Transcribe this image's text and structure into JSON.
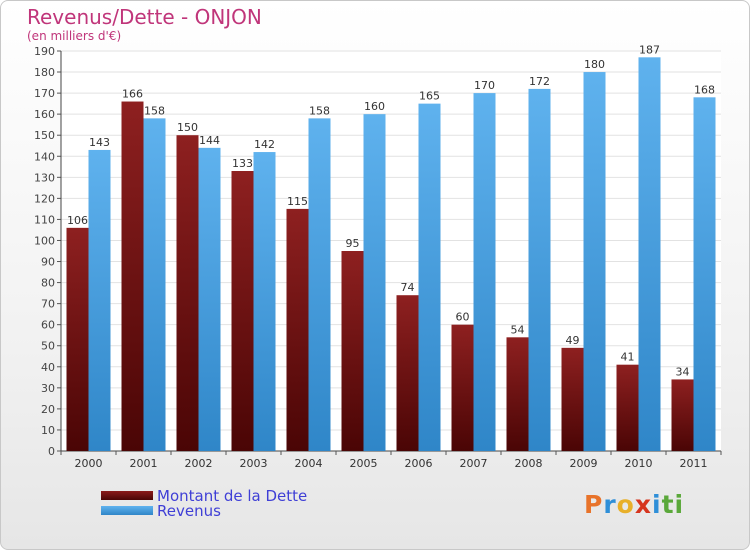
{
  "header": {
    "title": "Revenus/Dette - ONJON",
    "subtitle": "(en milliers d'€)"
  },
  "logo": {
    "text": "Proxiti",
    "letters": [
      "P",
      "r",
      "o",
      "x",
      "i",
      "t",
      "i"
    ],
    "colors": [
      "#e8732a",
      "#2f8fd8",
      "#e8b02a",
      "#d6351e",
      "#2f8fd8",
      "#5aa83a",
      "#5aa83a"
    ]
  },
  "chart_data": {
    "type": "bar",
    "title": "Revenus/Dette - ONJON",
    "ylabel": "(en milliers d'€)",
    "categories": [
      "2000",
      "2001",
      "2002",
      "2003",
      "2004",
      "2005",
      "2006",
      "2007",
      "2008",
      "2009",
      "2010",
      "2011"
    ],
    "series": [
      {
        "name": "Montant de la Dette",
        "color": "#8b1a1a",
        "values": [
          106,
          166,
          150,
          133,
          115,
          95,
          74,
          60,
          54,
          49,
          41,
          34
        ]
      },
      {
        "name": "Revenus",
        "color": "#4ea6e6",
        "values": [
          143,
          158,
          144,
          142,
          158,
          160,
          165,
          170,
          172,
          180,
          187,
          168
        ]
      }
    ],
    "ylim": [
      0,
      190
    ],
    "ytick_step": 10,
    "grid": true,
    "legend": "bottom-left"
  }
}
